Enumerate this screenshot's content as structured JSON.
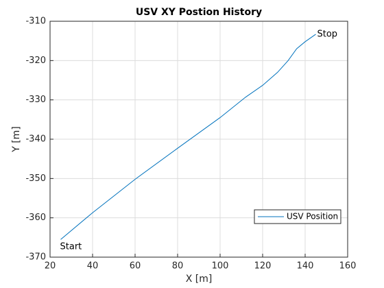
{
  "chart_data": {
    "type": "line",
    "title": "USV XY Postion History",
    "xlabel": "X [m]",
    "ylabel": "Y [m]",
    "x": [
      25,
      40,
      60,
      80,
      100,
      112,
      120,
      127,
      132,
      136,
      140,
      145
    ],
    "series": [
      {
        "name": "USV Position",
        "color": "#0072bd",
        "values": [
          -365.5,
          -358.7,
          -350.2,
          -342.3,
          -334.5,
          -329.3,
          -326.3,
          -323,
          -320,
          -317,
          -315.2,
          -313.3
        ]
      }
    ],
    "annotations": [
      "Start",
      "Stop"
    ],
    "xlim": [
      20,
      160
    ],
    "xticks": [
      20,
      40,
      60,
      80,
      100,
      120,
      140,
      160
    ],
    "ylim": [
      -370,
      -310
    ],
    "yticks": [
      -370,
      -360,
      -350,
      -340,
      -330,
      -320,
      -310
    ],
    "grid": true,
    "legend": "southeast"
  }
}
